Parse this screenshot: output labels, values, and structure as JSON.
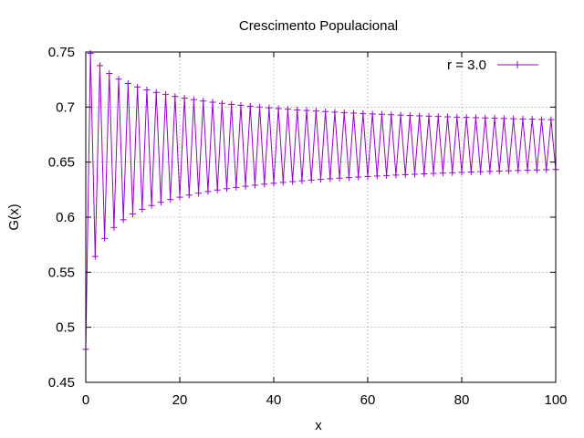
{
  "chart_data": {
    "type": "line",
    "title": "Crescimento Populacional",
    "xlabel": "x",
    "ylabel": "G(x)",
    "xlim": [
      0,
      100
    ],
    "ylim": [
      0.45,
      0.75
    ],
    "xticks": [
      0,
      20,
      40,
      60,
      80,
      100
    ],
    "xtick_labels": [
      "0",
      "20",
      "40",
      "60",
      "80",
      "100"
    ],
    "yticks": [
      0.45,
      0.5,
      0.55,
      0.6,
      0.65,
      0.7,
      0.75
    ],
    "ytick_labels": [
      "0.45",
      "0.5",
      "0.55",
      "0.6",
      "0.65",
      "0.7",
      "0.75"
    ],
    "grid": true,
    "legend_position": "top-right",
    "series": [
      {
        "name": "r = 3.0",
        "color": "#9400d3",
        "marker": "plus",
        "model": "logistic map x(n+1) = r*x(n)*(1-x(n))",
        "r": 3.0,
        "x0": 0.48,
        "x": [
          0,
          100
        ],
        "values": [
          0.48,
          0.7488
        ]
      }
    ]
  }
}
